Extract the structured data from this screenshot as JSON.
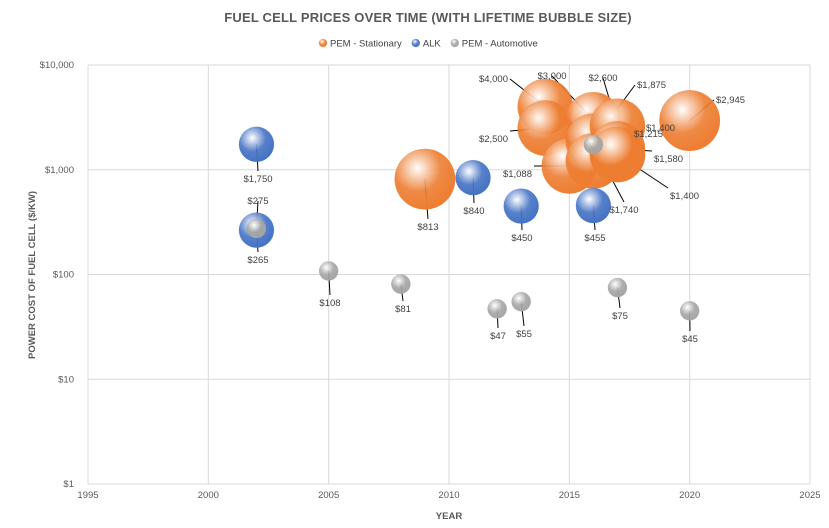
{
  "chart_data": {
    "type": "bubble",
    "title": "FUEL CELL PRICES OVER TIME (WITH LIFETIME BUBBLE SIZE)",
    "xlabel": "YEAR",
    "ylabel": "POWER COST OF FUEL CELL ($/KW)",
    "xlim": [
      1995,
      2025
    ],
    "ylim": [
      1,
      10000
    ],
    "yscale": "log",
    "grid": true,
    "legend_position": "top",
    "x_ticks": [
      "1995",
      "2000",
      "2005",
      "2010",
      "2015",
      "2020",
      "2025"
    ],
    "y_ticks": [
      "$1",
      "$10",
      "$100",
      "$1,000",
      "$10,000"
    ],
    "series": [
      {
        "name": "PEM - Stationary",
        "color": "#ed7d31",
        "points": [
          {
            "x": 2009,
            "y": 813,
            "label": "$813",
            "size": 3.0
          },
          {
            "x": 2014,
            "y": 4000,
            "label": "$4,000",
            "size": 2.5
          },
          {
            "x": 2014,
            "y": 2500,
            "label": "$2,500",
            "size": 2.5
          },
          {
            "x": 2015,
            "y": 1088,
            "label": "$1,088",
            "size": 2.5
          },
          {
            "x": 2016,
            "y": 3000,
            "label": "$3,000",
            "size": 2.5
          },
          {
            "x": 2016,
            "y": 1875,
            "label": "$1,875",
            "size": 2.5
          },
          {
            "x": 2016,
            "y": 1215,
            "label": "$1,215",
            "size": 2.5
          },
          {
            "x": 2017,
            "y": 2600,
            "label": "$2,600",
            "size": 2.5
          },
          {
            "x": 2017,
            "y": 1400,
            "label": "$1,400",
            "size": 2.5
          },
          {
            "x": 2017,
            "y": 1580,
            "label": "$1,580",
            "size": 2.5
          },
          {
            "x": 2017,
            "y": 1400,
            "label": "$1,400",
            "size": 2.5
          },
          {
            "x": 2020,
            "y": 2945,
            "label": "$2,945",
            "size": 3.0
          }
        ]
      },
      {
        "name": "ALK",
        "color": "#4472c4",
        "points": [
          {
            "x": 2002,
            "y": 1750,
            "label": "$1,750",
            "size": 1.0
          },
          {
            "x": 2002,
            "y": 265,
            "label": "$265",
            "size": 1.0
          },
          {
            "x": 2011,
            "y": 840,
            "label": "$840",
            "size": 1.0
          },
          {
            "x": 2013,
            "y": 450,
            "label": "$450",
            "size": 1.0
          },
          {
            "x": 2016,
            "y": 455,
            "label": "$455",
            "size": 1.0
          }
        ]
      },
      {
        "name": "PEM - Automotive",
        "color": "#a5a5a5",
        "points": [
          {
            "x": 2002,
            "y": 275,
            "label": "$275",
            "size": 0.3
          },
          {
            "x": 2005,
            "y": 108,
            "label": "$108",
            "size": 0.3
          },
          {
            "x": 2008,
            "y": 81,
            "label": "$81",
            "size": 0.3
          },
          {
            "x": 2012,
            "y": 47,
            "label": "$47",
            "size": 0.3
          },
          {
            "x": 2013,
            "y": 55,
            "label": "$55",
            "size": 0.3
          },
          {
            "x": 2016,
            "y": 1740,
            "label": "$1,740",
            "size": 0.3
          },
          {
            "x": 2017,
            "y": 75,
            "label": "$75",
            "size": 0.3
          },
          {
            "x": 2020,
            "y": 45,
            "label": "$45",
            "size": 0.3
          }
        ]
      }
    ]
  }
}
